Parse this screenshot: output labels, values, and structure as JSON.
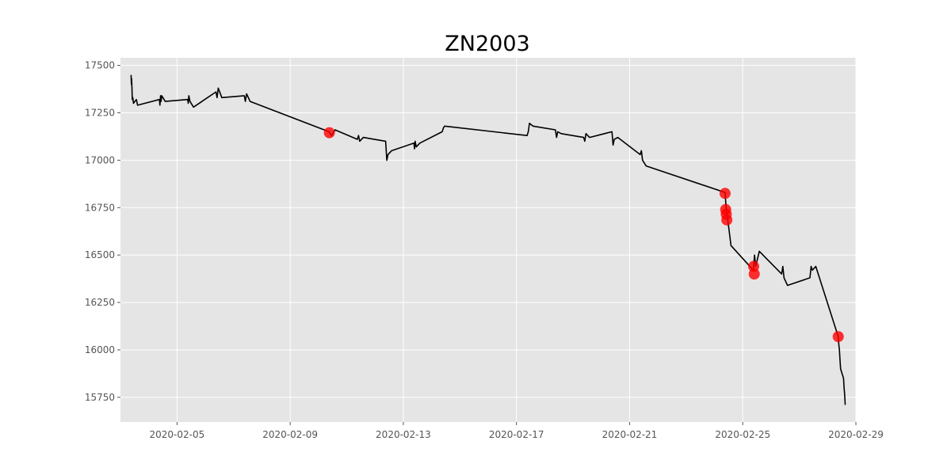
{
  "chart_data": {
    "type": "line",
    "title": "ZN2003",
    "xlabel": "",
    "ylabel": "",
    "x_axis_type": "date",
    "xlim": [
      "2020-02-03T00:00",
      "2020-02-29T00:00"
    ],
    "ylim": [
      15620,
      17540
    ],
    "x_ticks": [
      "2020-02-05",
      "2020-02-09",
      "2020-02-13",
      "2020-02-17",
      "2020-02-21",
      "2020-02-25",
      "2020-02-29"
    ],
    "y_ticks": [
      15750,
      16000,
      16250,
      16500,
      16750,
      17000,
      17250,
      17500
    ],
    "grid": true,
    "background": "#e5e5e5",
    "grid_color": "#ffffff",
    "line_color": "#000000",
    "marker_color": "#ff0000",
    "series": [
      {
        "x": [
          "2020-02-03T09:00",
          "2020-02-03T09:15",
          "2020-02-03T09:30",
          "2020-02-03T09:45",
          "2020-02-03T10:00",
          "2020-02-03T10:30",
          "2020-02-03T11:00",
          "2020-02-03T13:30",
          "2020-02-03T14:30",
          "2020-02-04T09:00",
          "2020-02-04T09:30",
          "2020-02-04T10:00",
          "2020-02-04T10:30",
          "2020-02-04T11:00",
          "2020-02-04T14:00",
          "2020-02-05T09:00",
          "2020-02-05T09:30",
          "2020-02-05T10:00",
          "2020-02-05T11:00",
          "2020-02-05T14:00",
          "2020-02-06T09:00",
          "2020-02-06T10:00",
          "2020-02-06T11:00",
          "2020-02-06T14:00",
          "2020-02-07T09:00",
          "2020-02-07T10:00",
          "2020-02-07T11:00",
          "2020-02-07T14:00",
          "2020-02-10T09:00",
          "2020-02-10T10:00",
          "2020-02-10T11:00",
          "2020-02-10T14:00",
          "2020-02-11T09:00",
          "2020-02-11T10:00",
          "2020-02-11T11:00",
          "2020-02-11T14:00",
          "2020-02-12T09:00",
          "2020-02-12T10:00",
          "2020-02-12T11:00",
          "2020-02-12T14:00",
          "2020-02-13T09:00",
          "2020-02-13T09:30",
          "2020-02-13T10:00",
          "2020-02-13T11:00",
          "2020-02-13T14:00",
          "2020-02-14T09:00",
          "2020-02-14T10:00",
          "2020-02-14T11:00",
          "2020-02-17T09:00",
          "2020-02-17T10:00",
          "2020-02-17T11:00",
          "2020-02-17T14:00",
          "2020-02-18T09:00",
          "2020-02-18T10:00",
          "2020-02-18T11:00",
          "2020-02-18T14:00",
          "2020-02-19T09:00",
          "2020-02-19T10:00",
          "2020-02-19T11:00",
          "2020-02-19T14:00",
          "2020-02-20T09:00",
          "2020-02-20T10:00",
          "2020-02-20T11:00",
          "2020-02-20T14:00",
          "2020-02-21T09:00",
          "2020-02-21T10:00",
          "2020-02-21T11:00",
          "2020-02-21T14:00",
          "2020-02-24T09:00",
          "2020-02-24T10:00",
          "2020-02-24T11:00",
          "2020-02-24T14:00",
          "2020-02-25T09:00",
          "2020-02-25T10:00",
          "2020-02-25T11:00",
          "2020-02-25T14:00",
          "2020-02-26T09:00",
          "2020-02-26T10:00",
          "2020-02-26T11:00",
          "2020-02-26T14:00",
          "2020-02-27T09:00",
          "2020-02-27T10:00",
          "2020-02-27T11:00",
          "2020-02-27T14:00",
          "2020-02-28T09:00",
          "2020-02-28T09:30",
          "2020-02-28T10:00",
          "2020-02-28T10:30",
          "2020-02-28T11:00",
          "2020-02-28T13:30",
          "2020-02-28T14:00",
          "2020-02-28T14:30",
          "2020-02-28T14:55"
        ],
        "y": [
          17450,
          17400,
          17430,
          17380,
          17320,
          17330,
          17300,
          17320,
          17290,
          17320,
          17290,
          17340,
          17310,
          17340,
          17310,
          17320,
          17300,
          17340,
          17310,
          17280,
          17360,
          17330,
          17380,
          17330,
          17340,
          17310,
          17350,
          17310,
          17150,
          17140,
          17130,
          17160,
          17110,
          17130,
          17100,
          17120,
          17100,
          17000,
          17030,
          17050,
          17090,
          17060,
          17100,
          17070,
          17090,
          17150,
          17170,
          17180,
          17130,
          17150,
          17195,
          17180,
          17160,
          17120,
          17150,
          17140,
          17120,
          17100,
          17140,
          17120,
          17150,
          17080,
          17110,
          17120,
          17030,
          17050,
          17000,
          16970,
          16830,
          16740,
          16700,
          16550,
          16420,
          16500,
          16440,
          16520,
          16400,
          16440,
          16380,
          16340,
          16380,
          16440,
          16420,
          16440,
          16070,
          16030,
          16000,
          15950,
          15900,
          15850,
          15800,
          15760,
          15710
        ]
      }
    ],
    "markers": {
      "x": [
        "2020-02-10T09:15",
        "2020-02-24T09:00",
        "2020-02-24T09:30",
        "2020-02-24T10:00",
        "2020-02-24T10:30",
        "2020-02-25T09:15",
        "2020-02-25T09:45",
        "2020-02-28T09:00"
      ],
      "y": [
        17145,
        16825,
        16740,
        16715,
        16685,
        16440,
        16400,
        16070
      ]
    }
  }
}
